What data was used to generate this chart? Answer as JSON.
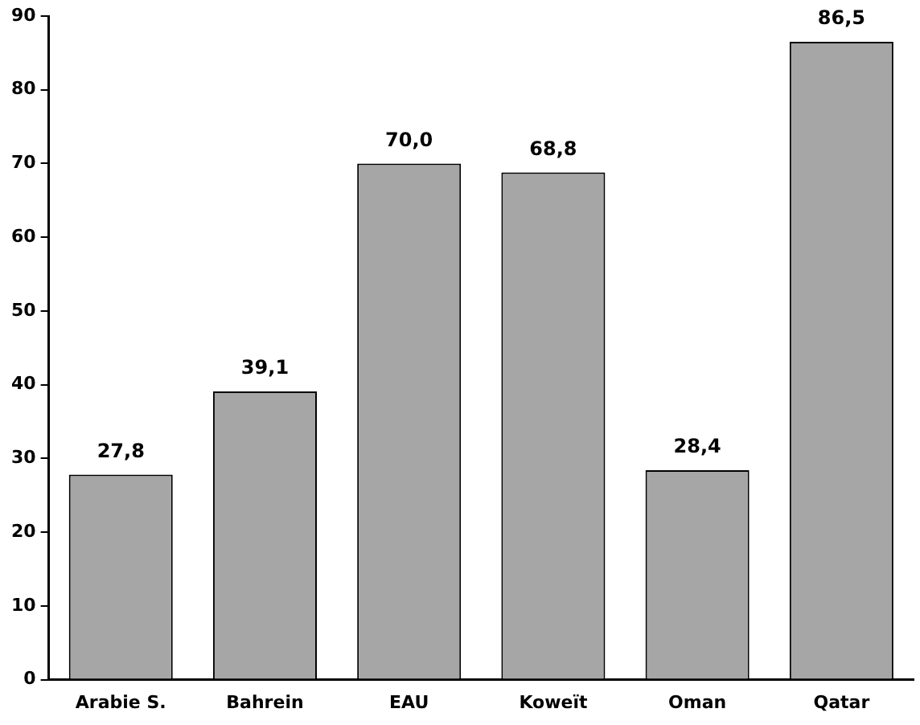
{
  "chart_data": {
    "type": "bar",
    "categories": [
      "Arabie S.",
      "Bahrein",
      "EAU",
      "Koweït",
      "Oman",
      "Qatar"
    ],
    "values": [
      27.8,
      39.1,
      70.0,
      68.8,
      28.4,
      86.5
    ],
    "value_labels": [
      "27,8",
      "39,1",
      "70,0",
      "68,8",
      "28,4",
      "86,5"
    ],
    "color": "#a6a6a6",
    "ylim": [
      0,
      90
    ],
    "yticks": [
      0,
      10,
      20,
      30,
      40,
      50,
      60,
      70,
      80,
      90
    ],
    "grid": false,
    "legend": false
  }
}
